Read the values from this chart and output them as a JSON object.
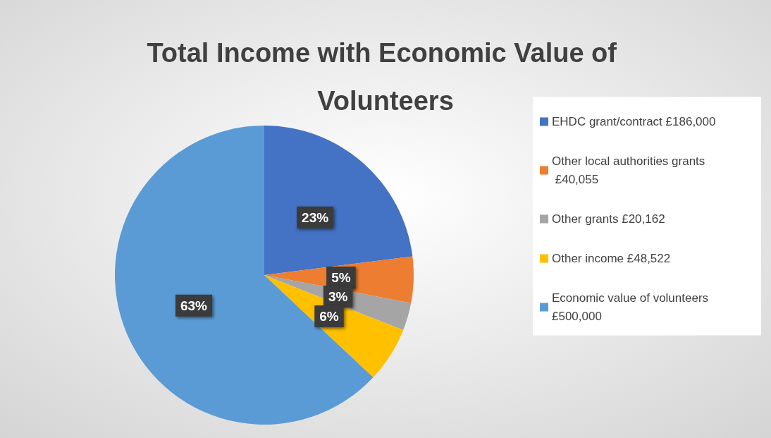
{
  "chart_data": {
    "type": "pie",
    "title": "Total Income with Economic Value of Volunteers",
    "categories": [
      "EHDC grant/contract £186,000",
      "Other local authorities grants £40,055",
      "Other grants £20,162",
      "Other income £48,522",
      "Economic value of volunteers £500,000"
    ],
    "values": [
      23,
      5,
      3,
      6,
      63
    ],
    "colors": [
      "#4472c4",
      "#ed7d31",
      "#a5a5a5",
      "#ffc000",
      "#5b9bd5"
    ],
    "value_labels": [
      "23%",
      "5%",
      "3%",
      "6%",
      "63%"
    ],
    "legend": "right"
  }
}
